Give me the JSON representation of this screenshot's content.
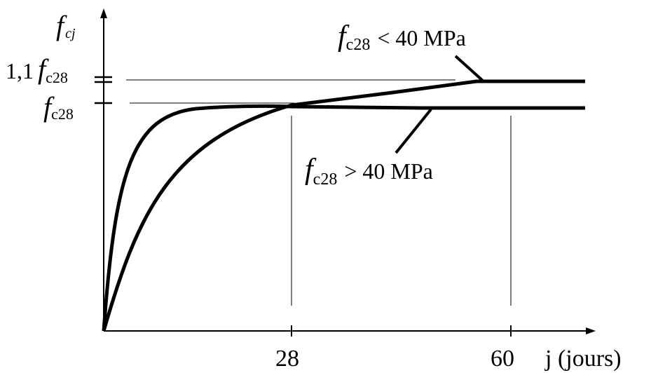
{
  "chart_data": {
    "type": "line",
    "y_axis_label": {
      "symbol": "f",
      "subscript": "cj"
    },
    "x_axis_label": "j (jours)",
    "x_ticks": [
      "28",
      "60"
    ],
    "y_ticks": [
      {
        "prefix": "1,1",
        "symbol": "f",
        "subscript": "c28",
        "value_ratio": 1.1
      },
      {
        "prefix": "",
        "symbol": "f",
        "subscript": "c28",
        "value_ratio": 1.0
      }
    ],
    "annotations": [
      {
        "symbol": "f",
        "subscript": "c28",
        "text": "< 40 MPa"
      },
      {
        "symbol": "f",
        "subscript": "c28",
        "text": "> 40 MPa"
      }
    ],
    "series": [
      {
        "curve": "fc28 < 40 MPa",
        "x": [
          0,
          2,
          4,
          7,
          10,
          14,
          21,
          28,
          40,
          57,
          60,
          73
        ],
        "y": [
          0,
          0.42,
          0.62,
          0.76,
          0.85,
          0.915,
          0.97,
          1.0,
          1.04,
          1.1,
          1.1,
          1.1
        ]
      },
      {
        "curve": "fc28 > 40 MPa",
        "x": [
          0,
          1,
          2,
          3,
          5,
          8,
          12,
          18,
          28,
          45,
          60,
          73
        ],
        "y": [
          0,
          0.55,
          0.77,
          0.86,
          0.93,
          0.97,
          0.99,
          1.0,
          1.0,
          1.0,
          1.0,
          1.0
        ]
      }
    ],
    "x_range": [
      0,
      73
    ],
    "y_range": [
      0,
      1.1
    ],
    "grid": false,
    "legend": "none"
  }
}
